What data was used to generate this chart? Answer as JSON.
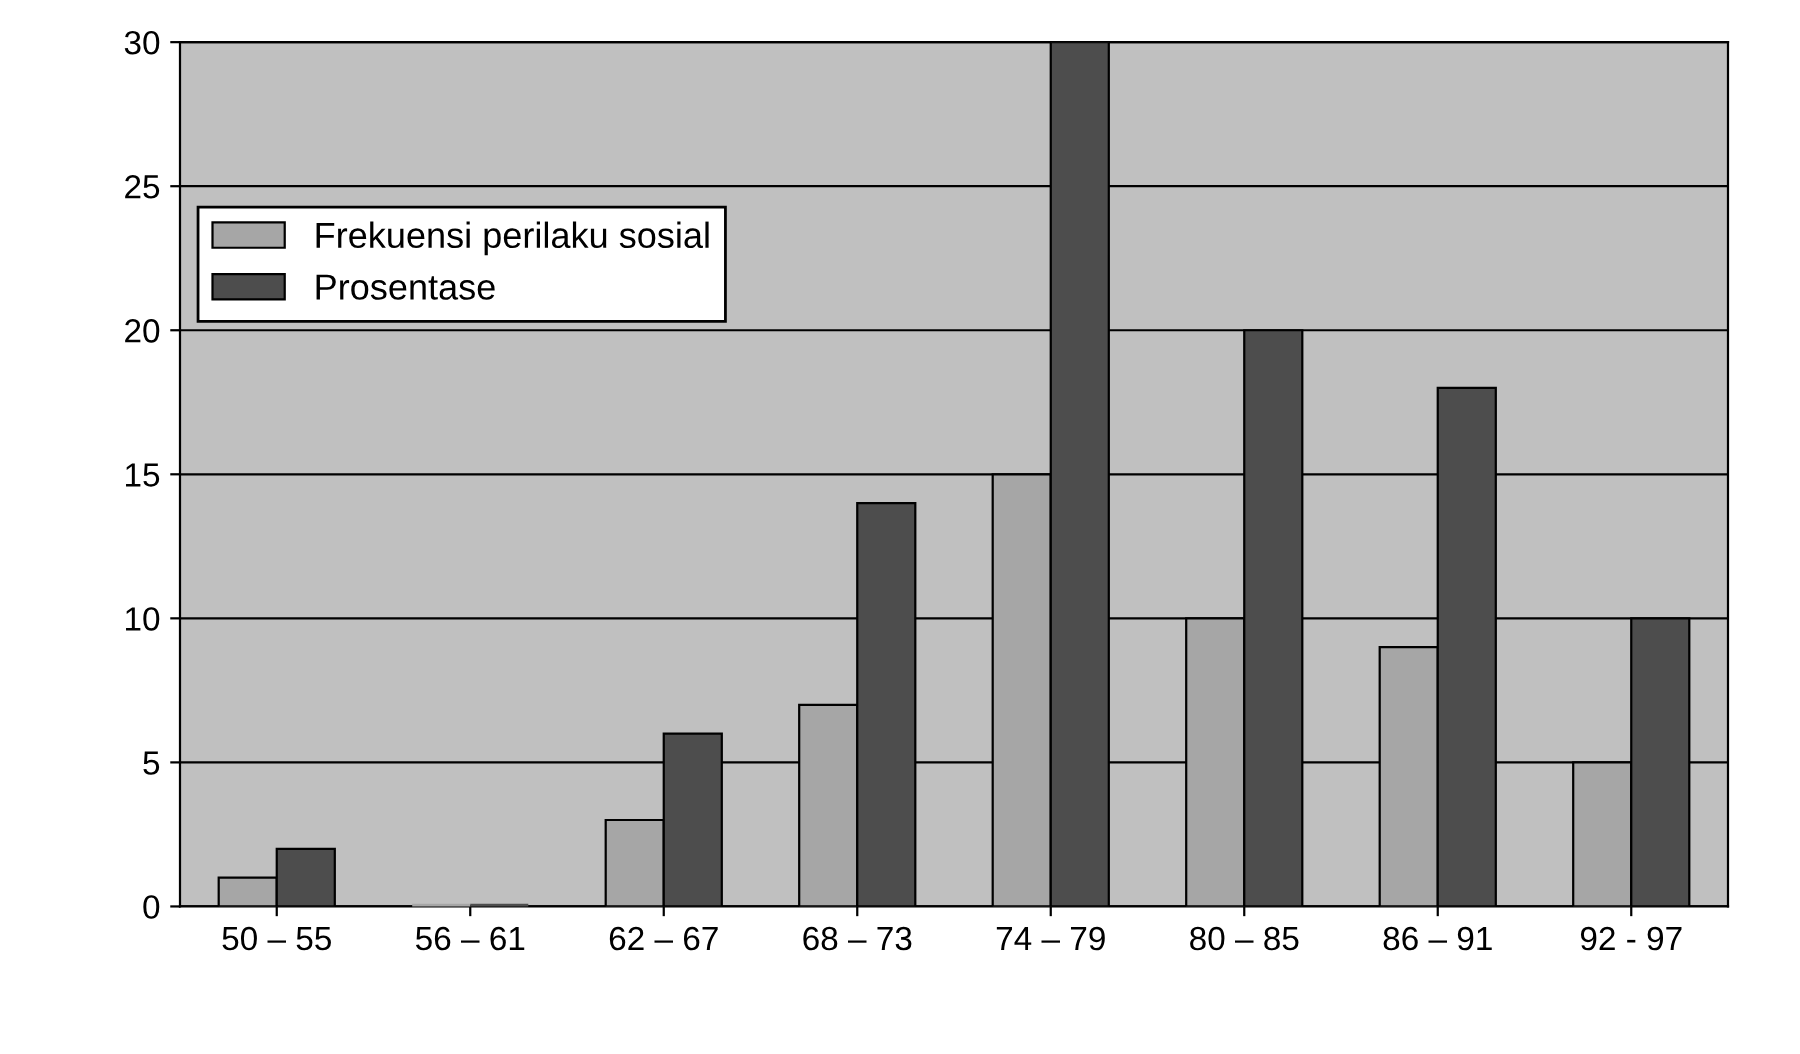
{
  "chart_data": {
    "type": "bar",
    "categories": [
      "50 – 55",
      "56 – 61",
      "62 – 67",
      "68 – 73",
      "74 – 79",
      "80 – 85",
      "86 – 91",
      "92 - 97"
    ],
    "series": [
      {
        "name": "Frekuensi perilaku sosial",
        "color": "#a6a6a6",
        "values": [
          1,
          0,
          3,
          7,
          15,
          10,
          9,
          5
        ]
      },
      {
        "name": "Prosentase",
        "color": "#4d4d4d",
        "values": [
          2,
          0,
          6,
          14,
          30,
          20,
          18,
          10
        ]
      }
    ],
    "ylim": [
      0,
      30
    ],
    "yticks": [
      0,
      5,
      10,
      15,
      20,
      25,
      30
    ],
    "grid": "y",
    "legend": "top left"
  }
}
